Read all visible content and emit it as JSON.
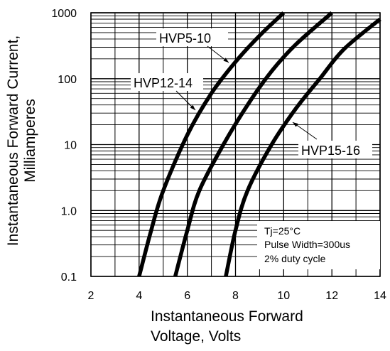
{
  "chart_data": {
    "type": "line",
    "title": "",
    "xlabel": [
      "Instantaneous Forward",
      "Voltage, Volts"
    ],
    "ylabel": [
      "Instantaneous Forward Current,",
      "Milliamperes"
    ],
    "x_scale": "linear",
    "y_scale": "log",
    "xlim": [
      2,
      14
    ],
    "ylim": [
      0.1,
      1000
    ],
    "x_ticks": [
      "2",
      "4",
      "6",
      "8",
      "10",
      "12",
      "14"
    ],
    "y_ticks": [
      "0.1",
      "1.0",
      "10",
      "100",
      "1000"
    ],
    "grid": true,
    "series": [
      {
        "name": "HVP5-10",
        "points": [
          [
            4.0,
            0.1
          ],
          [
            4.5,
            0.5
          ],
          [
            5.0,
            2
          ],
          [
            6.0,
            14
          ],
          [
            7.0,
            60
          ],
          [
            8.0,
            180
          ],
          [
            9.0,
            450
          ],
          [
            10.0,
            1000
          ]
        ]
      },
      {
        "name": "HVP12-14",
        "points": [
          [
            5.5,
            0.1
          ],
          [
            6.0,
            0.5
          ],
          [
            6.5,
            2
          ],
          [
            7.5,
            10
          ],
          [
            8.5,
            40
          ],
          [
            9.5,
            130
          ],
          [
            10.5,
            330
          ],
          [
            12.0,
            1000
          ]
        ]
      },
      {
        "name": "HVP15-16",
        "points": [
          [
            7.6,
            0.1
          ],
          [
            8.0,
            0.5
          ],
          [
            8.5,
            2
          ],
          [
            9.5,
            10
          ],
          [
            10.5,
            35
          ],
          [
            11.5,
            100
          ],
          [
            12.5,
            280
          ],
          [
            14.0,
            800
          ]
        ]
      }
    ],
    "annotations": {
      "labels": [
        "HVP5-10",
        "HVP12-14",
        "HVP15-16"
      ],
      "conditions": [
        "Tj=25°C",
        "Pulse Width=300us",
        "2% duty cycle"
      ]
    },
    "colors": {
      "curve": "#000000",
      "grid": "#000000",
      "background": "#ffffff"
    }
  }
}
